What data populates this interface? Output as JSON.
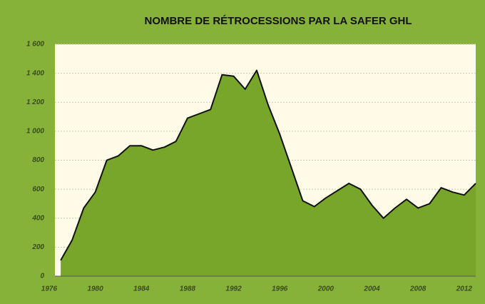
{
  "chart_data": {
    "type": "area",
    "title": "NOMBRE DE RÉTROCESSIONS PAR LA SAFER GHL",
    "x": [
      1977,
      1978,
      1979,
      1980,
      1981,
      1982,
      1983,
      1984,
      1985,
      1986,
      1987,
      1988,
      1989,
      1990,
      1991,
      1992,
      1993,
      1994,
      1995,
      1996,
      1997,
      1998,
      1999,
      2000,
      2001,
      2002,
      2003,
      2004,
      2005,
      2006,
      2007,
      2008,
      2009,
      2010,
      2011,
      2012,
      2013
    ],
    "values": [
      110,
      250,
      470,
      580,
      800,
      830,
      900,
      900,
      870,
      890,
      930,
      1090,
      1120,
      1150,
      1390,
      1380,
      1290,
      1420,
      1180,
      980,
      750,
      520,
      480,
      540,
      590,
      640,
      600,
      490,
      400,
      470,
      530,
      470,
      500,
      610,
      580,
      560,
      640
    ],
    "color": "#78a62a",
    "line_color": "#111111",
    "xlim": [
      1976.5,
      2013
    ],
    "xticks": [
      1976,
      1980,
      1984,
      1988,
      1992,
      1996,
      2000,
      2004,
      2008,
      2012
    ],
    "ylim": [
      0,
      1600
    ],
    "yticks": [
      0,
      200,
      400,
      600,
      800,
      {
        "value": 1000,
        "label": "1 000"
      },
      {
        "value": 1200,
        "label": "1 200"
      },
      {
        "value": 1400,
        "label": "1 400"
      },
      {
        "value": 1600,
        "label": "1 600"
      }
    ],
    "grid": true
  }
}
